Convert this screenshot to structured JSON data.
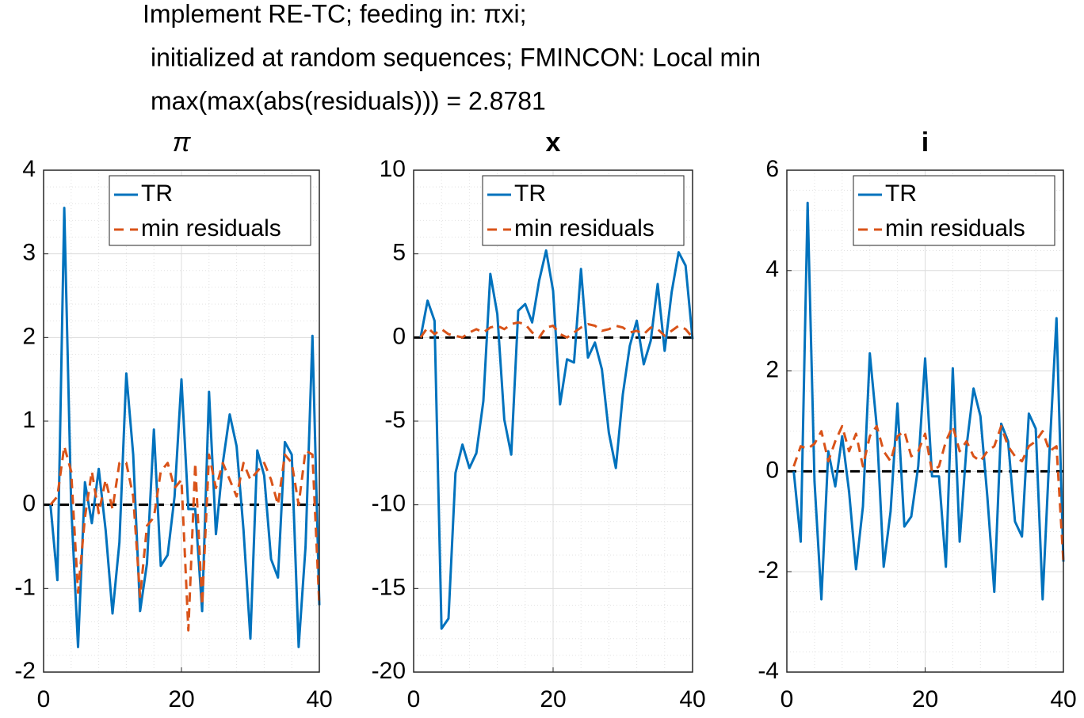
{
  "title": [
    "Implement RE-TC; feeding in: πxi;",
    "initialized at random sequences; FMINCON: Local min",
    "max(max(abs(residuals))) = 2.8781"
  ],
  "chart_data": [
    {
      "type": "line",
      "title": "π",
      "x": [
        1,
        2,
        3,
        4,
        5,
        6,
        7,
        8,
        9,
        10,
        11,
        12,
        13,
        14,
        15,
        16,
        17,
        18,
        19,
        20,
        21,
        22,
        23,
        24,
        25,
        26,
        27,
        28,
        29,
        30,
        31,
        32,
        33,
        34,
        35,
        36,
        37,
        38,
        39,
        40
      ],
      "series": [
        {
          "name": "TR",
          "color": "#0072bd",
          "dash": false,
          "values": [
            0,
            -0.9,
            3.55,
            0,
            -1.7,
            0.27,
            -0.22,
            0.43,
            -0.3,
            -1.3,
            -0.45,
            1.57,
            0.6,
            -1.27,
            -0.7,
            0.9,
            -0.73,
            -0.6,
            0.1,
            1.5,
            -0.05,
            -0.05,
            -1.27,
            1.35,
            -0.35,
            0.5,
            1.08,
            0.7,
            -0.3,
            -1.6,
            0.65,
            0.35,
            -0.65,
            -0.87,
            0.75,
            0.6,
            -1.7,
            -0.5,
            2.02,
            -1.2
          ]
        },
        {
          "name": "min residuals",
          "color": "#d95319",
          "dash": true,
          "values": [
            0,
            0.1,
            0.7,
            0.4,
            -1.05,
            -0.15,
            0.4,
            -0.1,
            0.3,
            -0.05,
            0.5,
            0.5,
            0.1,
            -1.1,
            -0.25,
            -0.15,
            0.4,
            0.5,
            0.2,
            0.3,
            -1.5,
            0.5,
            -1.2,
            0.6,
            0.2,
            0.5,
            0.3,
            0.1,
            0.5,
            0.3,
            0.4,
            0.5,
            0.3,
            0,
            0.6,
            0.5,
            0,
            0.65,
            0.6,
            -1.2
          ]
        }
      ],
      "hline": 0,
      "xlim": [
        0,
        40
      ],
      "xticks": [
        0,
        20,
        40
      ],
      "ylim": [
        -2,
        4
      ],
      "yticks": [
        -2,
        -1,
        0,
        1,
        2,
        3,
        4
      ],
      "grid": true,
      "legend": "northeast"
    },
    {
      "type": "line",
      "title": "x",
      "x": [
        1,
        2,
        3,
        4,
        5,
        6,
        7,
        8,
        9,
        10,
        11,
        12,
        13,
        14,
        15,
        16,
        17,
        18,
        19,
        20,
        21,
        22,
        23,
        24,
        25,
        26,
        27,
        28,
        29,
        30,
        31,
        32,
        33,
        34,
        35,
        36,
        37,
        38,
        39,
        40
      ],
      "series": [
        {
          "name": "TR",
          "color": "#0072bd",
          "dash": false,
          "values": [
            0,
            2.2,
            1,
            -17.4,
            -16.8,
            -8.1,
            -6.4,
            -7.8,
            -6.9,
            -3.8,
            3.8,
            1.4,
            -4.9,
            -7,
            1.6,
            2,
            0.9,
            3.4,
            5.2,
            2.8,
            -4,
            -1.3,
            -1.5,
            4.1,
            -1.2,
            -0.3,
            -1.9,
            -5.7,
            -7.8,
            -3.4,
            -0.5,
            1,
            -1.6,
            -0.2,
            3.2,
            -0.8,
            2.7,
            5.1,
            4.3,
            -0.1
          ]
        },
        {
          "name": "min residuals",
          "color": "#d95319",
          "dash": true,
          "values": [
            0,
            0.6,
            0.2,
            0.5,
            0.2,
            0.1,
            0,
            0.3,
            0.5,
            0.3,
            0.6,
            0.7,
            0.5,
            0.8,
            0.9,
            0.8,
            0.3,
            0,
            0.6,
            0.7,
            0.2,
            0,
            0.3,
            0.6,
            0.8,
            0.7,
            0.4,
            0.5,
            0.7,
            0.6,
            0.3,
            0.4,
            0.2,
            0.6,
            0.5,
            0.1,
            0.4,
            0.7,
            0.5,
            0
          ]
        }
      ],
      "hline": 0,
      "xlim": [
        0,
        40
      ],
      "xticks": [
        0,
        20,
        40
      ],
      "ylim": [
        -20,
        10
      ],
      "yticks": [
        -20,
        -15,
        -10,
        -5,
        0,
        5,
        10
      ],
      "grid": true,
      "legend": "northeast"
    },
    {
      "type": "line",
      "title": "i",
      "x": [
        1,
        2,
        3,
        4,
        5,
        6,
        7,
        8,
        9,
        10,
        11,
        12,
        13,
        14,
        15,
        16,
        17,
        18,
        19,
        20,
        21,
        22,
        23,
        24,
        25,
        26,
        27,
        28,
        29,
        30,
        31,
        32,
        33,
        34,
        35,
        36,
        37,
        38,
        39,
        40
      ],
      "series": [
        {
          "name": "TR",
          "color": "#0072bd",
          "dash": false,
          "values": [
            0,
            -1.4,
            5.35,
            -0.2,
            -2.55,
            0.4,
            -0.3,
            0.7,
            -0.4,
            -1.95,
            -0.7,
            2.35,
            0.9,
            -1.9,
            -0.8,
            1.35,
            -1.1,
            -0.9,
            0.1,
            2.25,
            -0.1,
            -0.1,
            -1.9,
            2.05,
            -1.4,
            0.5,
            1.65,
            1.1,
            -0.5,
            -2.4,
            0.95,
            0.6,
            -1,
            -1.3,
            1.15,
            0.85,
            -2.55,
            0.4,
            3.05,
            -1.8
          ]
        },
        {
          "name": "min residuals",
          "color": "#d95319",
          "dash": true,
          "values": [
            0.1,
            0.5,
            0.45,
            0.55,
            0.8,
            0.2,
            0.6,
            0.9,
            0.4,
            0.75,
            0.1,
            0.7,
            0.9,
            0.4,
            0.2,
            0.7,
            0.8,
            0.3,
            0.4,
            0.75,
            0,
            0.1,
            0.6,
            0.9,
            0.4,
            0.6,
            0.3,
            0.2,
            0.4,
            0.5,
            0.9,
            0.5,
            0.3,
            0.2,
            0.5,
            0.6,
            0.8,
            0.4,
            0.5,
            -1.8
          ]
        }
      ],
      "hline": 0,
      "xlim": [
        0,
        40
      ],
      "xticks": [
        0,
        20,
        40
      ],
      "ylim": [
        -4,
        6
      ],
      "yticks": [
        -4,
        -2,
        0,
        2,
        4,
        6
      ],
      "grid": true,
      "legend": "northeast"
    }
  ]
}
